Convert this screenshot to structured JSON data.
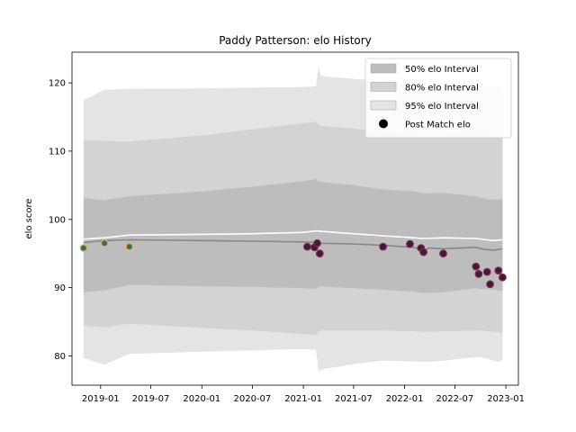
{
  "chart_data": {
    "type": "line",
    "title": "Paddy Patterson: elo History",
    "xlabel": "",
    "ylabel": "elo score",
    "x_ticks": [
      "2019-01",
      "2019-07",
      "2020-01",
      "2020-07",
      "2021-01",
      "2021-07",
      "2022-01",
      "2022-07",
      "2023-01"
    ],
    "y_ticks": [
      80,
      90,
      100,
      110,
      120
    ],
    "xlim": [
      "2018-09-20",
      "2023-02-15"
    ],
    "ylim": [
      75.7,
      124.5
    ],
    "grid": false,
    "legend_position": "top-right",
    "colors": {
      "band_50": "#bdbdbd",
      "band_80": "#d3d3d3",
      "band_95": "#e4e4e4",
      "mean_line": "#888888",
      "upper_mean_line": "#ffffff",
      "marker_fill_early": "#2b6a8e",
      "marker_edge_early": "#e3b51e",
      "marker_fill_late": "#3b1b3f",
      "marker_edge_late": "#8b2a44"
    },
    "legend": [
      {
        "label": "50% elo Interval",
        "kind": "band_50"
      },
      {
        "label": "80% elo Interval",
        "kind": "band_80"
      },
      {
        "label": "95% elo Interval",
        "kind": "band_95"
      },
      {
        "label": "Post Match elo",
        "kind": "marker"
      }
    ],
    "bands": {
      "x": [
        "2018-11-01",
        "2019-01-15",
        "2019-04-15",
        "2020-01-01",
        "2020-07-01",
        "2021-01-01",
        "2021-02-15",
        "2021-02-25",
        "2021-03-05",
        "2021-07-01",
        "2021-10-15",
        "2022-02-01",
        "2022-03-10",
        "2022-05-20",
        "2022-09-15",
        "2022-10-01",
        "2022-11-01",
        "2022-12-05",
        "2022-12-20"
      ],
      "p95_upper": [
        117.5,
        119,
        119.1,
        119.2,
        119.3,
        119.4,
        119.5,
        122.5,
        121.0,
        120.6,
        120.3,
        119.8,
        119.7,
        119.7,
        119.9,
        119.5,
        119.3,
        119.5,
        119.2
      ],
      "p95_lower": [
        79.7,
        78.7,
        80.3,
        80.6,
        80.8,
        81.0,
        80.9,
        77.7,
        78.0,
        78.8,
        79.3,
        79.2,
        79.1,
        79.3,
        79.8,
        79.8,
        79.5,
        79.1,
        79.4
      ],
      "p80_upper": [
        111.6,
        111.5,
        111.4,
        112.3,
        113.2,
        114.1,
        114.3,
        113.8,
        113.7,
        113.3,
        112.8,
        112.3,
        112.2,
        112.2,
        112.3,
        112.3,
        112.3,
        112.1,
        112.0
      ],
      "p80_lower": [
        84.4,
        84.2,
        84.7,
        84.1,
        83.7,
        83.2,
        83.1,
        83.6,
        83.7,
        83.7,
        83.7,
        83.6,
        83.5,
        83.6,
        83.7,
        83.7,
        83.6,
        83.5,
        83.3
      ],
      "p50_upper": [
        103.1,
        102.8,
        103.4,
        104.1,
        104.8,
        105.6,
        105.9,
        105.6,
        105.5,
        105.0,
        104.4,
        104.1,
        103.8,
        103.9,
        103.4,
        103.2,
        102.9,
        102.9,
        103.0
      ],
      "p50_lower": [
        89.3,
        89.6,
        90.4,
        90.2,
        90.1,
        89.9,
        89.8,
        90.2,
        90.2,
        89.9,
        89.7,
        89.4,
        89.2,
        89.3,
        89.9,
        89.8,
        89.8,
        89.6,
        89.5
      ]
    },
    "mean_line": {
      "x": [
        "2018-11-01",
        "2019-01-15",
        "2019-04-15",
        "2020-01-01",
        "2020-07-01",
        "2021-01-01",
        "2021-02-15",
        "2021-03-05",
        "2021-07-01",
        "2021-10-15",
        "2022-02-01",
        "2022-03-10",
        "2022-04-01",
        "2022-05-20",
        "2022-09-15",
        "2022-10-15",
        "2022-11-15",
        "2022-12-20"
      ],
      "y": [
        96.6,
        96.9,
        97.0,
        96.9,
        96.8,
        96.7,
        96.6,
        96.5,
        96.4,
        96.2,
        95.9,
        95.5,
        95.8,
        95.7,
        95.9,
        95.6,
        95.5,
        95.7
      ]
    },
    "upper_line": {
      "x": [
        "2018-11-01",
        "2019-01-15",
        "2019-04-15",
        "2020-01-01",
        "2020-07-01",
        "2021-01-01",
        "2021-02-15",
        "2021-07-01",
        "2021-10-15",
        "2022-02-01",
        "2022-03-10",
        "2022-05-20",
        "2022-09-15",
        "2022-11-15",
        "2022-12-20"
      ],
      "y": [
        97.1,
        97.3,
        97.7,
        97.8,
        97.9,
        98.1,
        98.3,
        97.9,
        97.6,
        97.3,
        97.2,
        97.3,
        97.2,
        96.9,
        97.0
      ]
    },
    "post_match_points": {
      "early": {
        "x": [
          "2018-11-01",
          "2019-01-15",
          "2019-04-15"
        ],
        "y": [
          95.8,
          96.5,
          96.0
        ]
      },
      "late": {
        "x": [
          "2021-01-15",
          "2021-02-10",
          "2021-02-20",
          "2021-03-01",
          "2021-10-15",
          "2022-01-20",
          "2022-03-01",
          "2022-03-10",
          "2022-05-20",
          "2022-09-15",
          "2022-09-25",
          "2022-10-25",
          "2022-11-05",
          "2022-12-05",
          "2022-12-20"
        ],
        "y": [
          96.0,
          95.9,
          96.5,
          95.0,
          96.0,
          96.4,
          95.8,
          95.2,
          95.0,
          93.1,
          92.0,
          92.3,
          90.5,
          92.5,
          91.5
        ]
      }
    }
  }
}
